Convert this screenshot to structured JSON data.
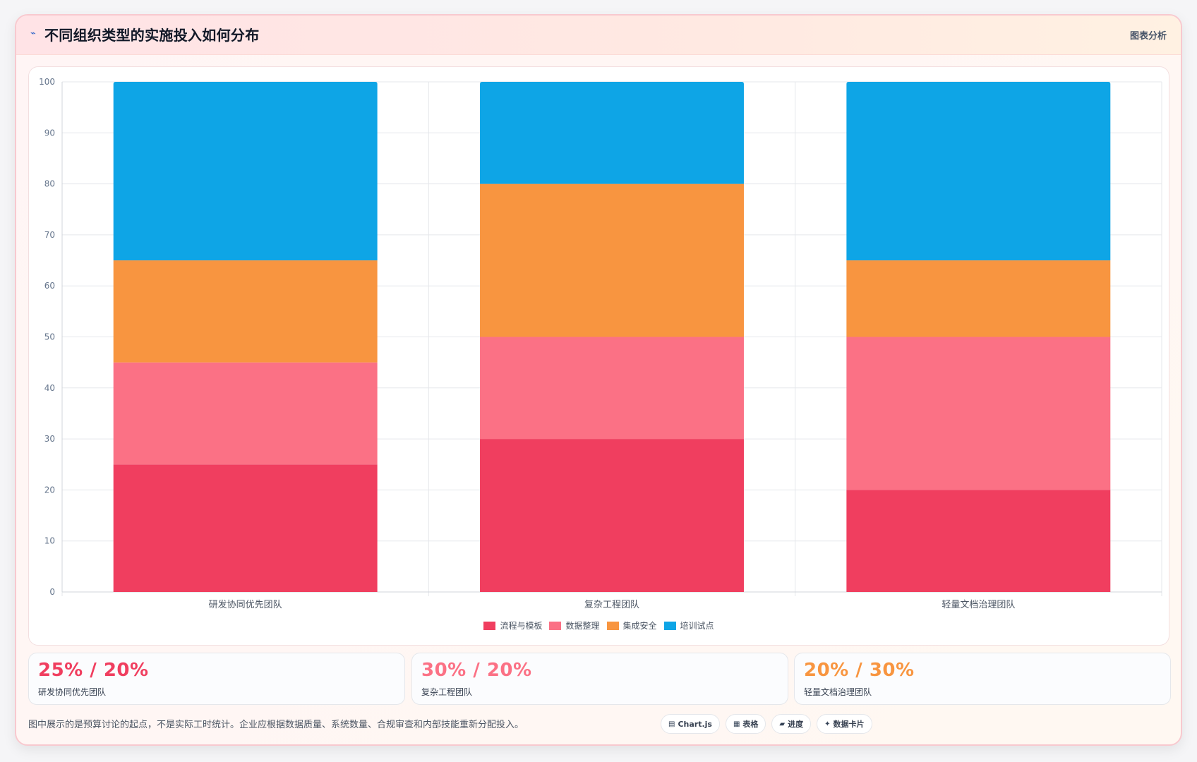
{
  "header": {
    "icon": "chart-line-icon",
    "title": "不同组织类型的实施投入如何分布",
    "tag": "图表分析"
  },
  "colors": {
    "series1": "#f03e5f",
    "series2": "#fb7185",
    "series3": "#f89540",
    "series4": "#0ea5e6",
    "gridline": "#e5e7eb",
    "axis_text": "#64748b"
  },
  "chart_data": {
    "type": "bar",
    "stacked": true,
    "categories": [
      "研发协同优先团队",
      "复杂工程团队",
      "轻量文档治理团队"
    ],
    "series": [
      {
        "name": "流程与模板",
        "values": [
          25,
          30,
          20
        ]
      },
      {
        "name": "数据整理",
        "values": [
          20,
          20,
          30
        ]
      },
      {
        "name": "集成安全",
        "values": [
          20,
          30,
          15
        ]
      },
      {
        "name": "培训试点",
        "values": [
          35,
          20,
          35
        ]
      }
    ],
    "ylim": [
      0,
      100
    ],
    "yticks": [
      0,
      10,
      20,
      30,
      40,
      50,
      60,
      70,
      80,
      90,
      100
    ],
    "grid": true,
    "legend_position": "bottom"
  },
  "stats": [
    {
      "value": "25% / 20%",
      "label": "研发协同优先团队",
      "color": "#f03e5f"
    },
    {
      "value": "30% / 20%",
      "label": "复杂工程团队",
      "color": "#fb7185"
    },
    {
      "value": "20% / 30%",
      "label": "轻量文档治理团队",
      "color": "#f89540"
    }
  ],
  "footnote": "图中展示的是预算讨论的起点，不是实际工时统计。企业应根据数据质量、系统数量、合规审查和内部技能重新分配投入。",
  "chips": [
    {
      "icon": "chart-icon",
      "label": "Chart.js"
    },
    {
      "icon": "table-icon",
      "label": "表格"
    },
    {
      "icon": "progress-icon",
      "label": "进度"
    },
    {
      "icon": "sparkle-icon",
      "label": "数据卡片"
    }
  ]
}
